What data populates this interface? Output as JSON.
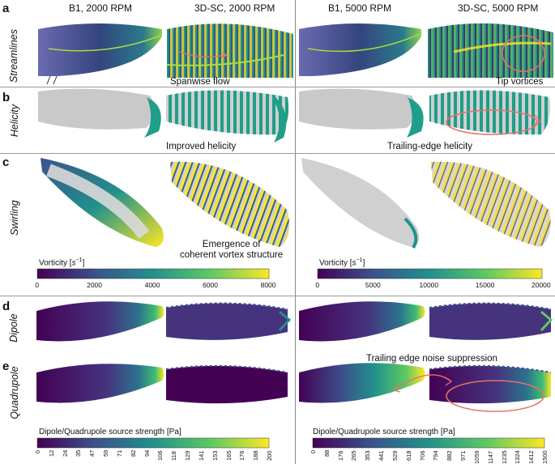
{
  "columns": [
    "B1, 2000 RPM",
    "3D-SC, 2000 RPM",
    "B1, 5000 RPM",
    "3D-SC, 5000 RPM"
  ],
  "rows": [
    {
      "letter": "a",
      "label": "Streamlines"
    },
    {
      "letter": "b",
      "label": "Helicity"
    },
    {
      "letter": "c",
      "label": "Swirling"
    },
    {
      "letter": "d",
      "label": "Dipole"
    },
    {
      "letter": "e",
      "label": "Quadrupole"
    }
  ],
  "annotations": {
    "spanwise": "Spanwise flow",
    "tip": "Tip vortices",
    "improved_helicity": "Improved helicity",
    "trailing_edge_helicity": "Trailing-edge helicity",
    "emergence": "Emergence of\ncoherent vortex structure",
    "te_noise": "Trailing edge noise suppression"
  },
  "colorbars": {
    "vorticity_left": {
      "title_prefix": "Vorticity [",
      "title_unit": "s",
      "title_exp": "−1",
      "title_suffix": "]",
      "ticks": [
        "0",
        "2000",
        "4000",
        "6000",
        "8000"
      ]
    },
    "vorticity_right": {
      "title_prefix": "Vorticity [",
      "title_unit": "s",
      "title_exp": "−1",
      "title_suffix": "]",
      "ticks": [
        "0",
        "5000",
        "10000",
        "15000",
        "20000"
      ]
    },
    "source_left": {
      "title": "Dipole/Quadrupole source strength [Pa]",
      "ticks": [
        "0",
        "12",
        "24",
        "35",
        "47",
        "59",
        "71",
        "82",
        "94",
        "106",
        "118",
        "129",
        "141",
        "153",
        "165",
        "176",
        "188",
        "200"
      ]
    },
    "source_right": {
      "title": "Dipole/Quadrupole source strength [Pa]",
      "ticks": [
        "0",
        "88",
        "176",
        "265",
        "353",
        "441",
        "529",
        "618",
        "706",
        "794",
        "882",
        "971",
        "1059",
        "1147",
        "1235",
        "1324",
        "1412",
        "1500"
      ]
    }
  },
  "palette": {
    "viridis": [
      "#440154",
      "#3b528b",
      "#21918c",
      "#5ec962",
      "#fde725"
    ],
    "accent": "#e8706a",
    "surface": "#c8c8c8"
  }
}
